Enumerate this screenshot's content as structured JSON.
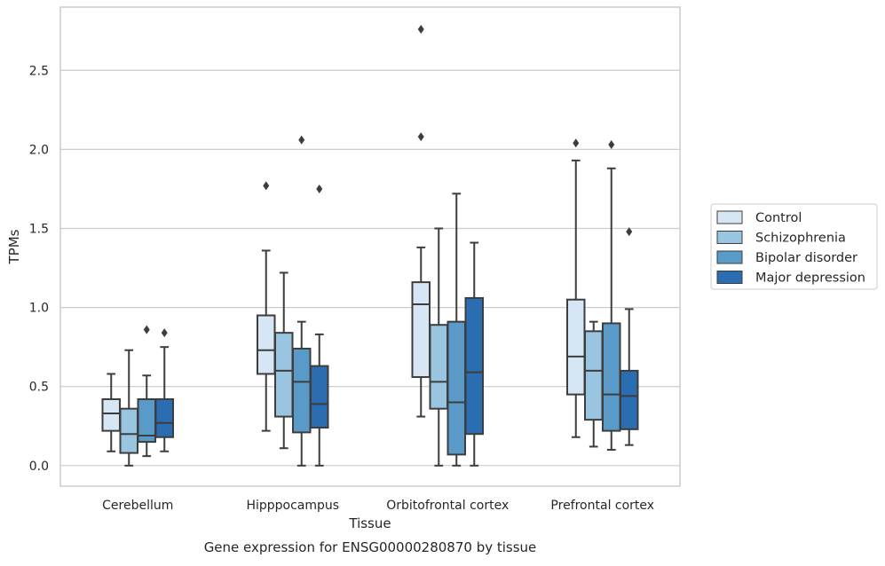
{
  "chart_data": {
    "type": "box",
    "caption": "Gene expression for ENSG00000280870 by tissue",
    "xlabel": "Tissue",
    "ylabel": "TPMs",
    "ylim": [
      -0.13,
      2.9
    ],
    "yticks": [
      0.0,
      0.5,
      1.0,
      1.5,
      2.0,
      2.5
    ],
    "ytick_labels": [
      "0.0",
      "0.5",
      "1.0",
      "1.5",
      "2.0",
      "2.5"
    ],
    "grid": "horizontal",
    "legend_position": "right",
    "categories": [
      "Cerebellum",
      "Hipppocampus",
      "Orbitofrontal cortex",
      "Prefrontal cortex"
    ],
    "series": [
      {
        "name": "Control",
        "color": "#d6e6f4",
        "boxes": [
          {
            "whislo": 0.09,
            "q1": 0.22,
            "med": 0.33,
            "q3": 0.42,
            "whishi": 0.58,
            "fliers": []
          },
          {
            "whislo": 0.22,
            "q1": 0.58,
            "med": 0.73,
            "q3": 0.95,
            "whishi": 1.36,
            "fliers": [
              1.77
            ]
          },
          {
            "whislo": 0.31,
            "q1": 0.56,
            "med": 1.02,
            "q3": 1.16,
            "whishi": 1.38,
            "fliers": [
              2.08,
              2.76
            ]
          },
          {
            "whislo": 0.18,
            "q1": 0.45,
            "med": 0.69,
            "q3": 1.05,
            "whishi": 1.93,
            "fliers": [
              2.04
            ]
          }
        ]
      },
      {
        "name": "Schizophrenia",
        "color": "#9ac5e0",
        "boxes": [
          {
            "whislo": 0.0,
            "q1": 0.08,
            "med": 0.2,
            "q3": 0.36,
            "whishi": 0.73,
            "fliers": []
          },
          {
            "whislo": 0.11,
            "q1": 0.31,
            "med": 0.6,
            "q3": 0.84,
            "whishi": 1.22,
            "fliers": []
          },
          {
            "whislo": 0.0,
            "q1": 0.36,
            "med": 0.53,
            "q3": 0.89,
            "whishi": 1.5,
            "fliers": []
          },
          {
            "whislo": 0.12,
            "q1": 0.29,
            "med": 0.6,
            "q3": 0.85,
            "whishi": 0.91,
            "fliers": []
          }
        ]
      },
      {
        "name": "Bipolar disorder",
        "color": "#5a9ac9",
        "boxes": [
          {
            "whislo": 0.06,
            "q1": 0.15,
            "med": 0.19,
            "q3": 0.42,
            "whishi": 0.57,
            "fliers": [
              0.86
            ]
          },
          {
            "whislo": 0.0,
            "q1": 0.21,
            "med": 0.53,
            "q3": 0.74,
            "whishi": 0.91,
            "fliers": [
              2.06
            ]
          },
          {
            "whislo": 0.0,
            "q1": 0.07,
            "med": 0.4,
            "q3": 0.91,
            "whishi": 1.72,
            "fliers": []
          },
          {
            "whislo": 0.1,
            "q1": 0.22,
            "med": 0.45,
            "q3": 0.9,
            "whishi": 1.88,
            "fliers": [
              2.03
            ]
          }
        ]
      },
      {
        "name": "Major depression",
        "color": "#2a6db0",
        "boxes": [
          {
            "whislo": 0.09,
            "q1": 0.18,
            "med": 0.27,
            "q3": 0.42,
            "whishi": 0.75,
            "fliers": [
              0.84
            ]
          },
          {
            "whislo": 0.0,
            "q1": 0.24,
            "med": 0.39,
            "q3": 0.63,
            "whishi": 0.83,
            "fliers": [
              1.75
            ]
          },
          {
            "whislo": 0.0,
            "q1": 0.2,
            "med": 0.59,
            "q3": 1.06,
            "whishi": 1.41,
            "fliers": []
          },
          {
            "whislo": 0.13,
            "q1": 0.23,
            "med": 0.44,
            "q3": 0.6,
            "whishi": 0.99,
            "fliers": [
              1.48
            ]
          }
        ]
      }
    ]
  }
}
